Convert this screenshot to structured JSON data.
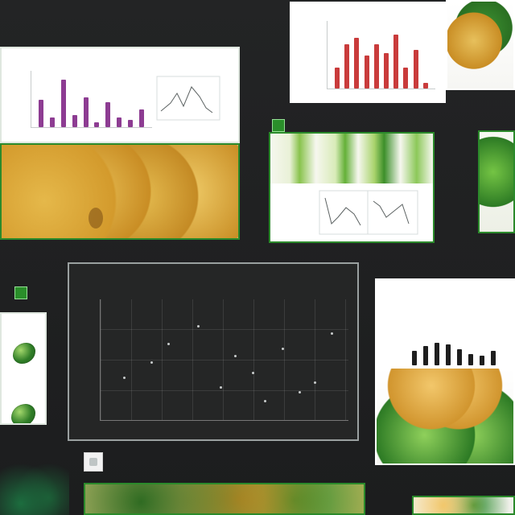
{
  "texts": {
    "top_left": "",
    "left_mid": "",
    "left_low": "",
    "mid_caption": "",
    "mid_caption2": "",
    "right_top_caption": "",
    "right_mid_caption": "",
    "bottom_left": "",
    "bottom_mid": ""
  },
  "charts": {
    "top_left_chart": {
      "type": "bar",
      "title": "",
      "values": [
        0.55,
        0.2,
        0.95,
        0.25,
        0.6,
        0.1,
        0.5,
        0.2,
        0.15,
        0.35
      ],
      "color": "#8d3c92"
    },
    "top_right_chart": {
      "type": "bar",
      "title": "",
      "values": [
        0.35,
        0.75,
        0.85,
        0.55,
        0.75,
        0.6,
        0.9,
        0.35,
        0.65,
        0.1
      ],
      "color": "#c93b3b"
    },
    "middle_scatter": {
      "type": "scatter",
      "title": "",
      "subtitle": "",
      "points": [
        {
          "x": 0.09,
          "y": 0.36
        },
        {
          "x": 0.27,
          "y": 0.64
        },
        {
          "x": 0.39,
          "y": 0.79
        },
        {
          "x": 0.54,
          "y": 0.54
        },
        {
          "x": 0.61,
          "y": 0.4
        },
        {
          "x": 0.73,
          "y": 0.6
        },
        {
          "x": 0.86,
          "y": 0.32
        },
        {
          "x": 0.93,
          "y": 0.73
        },
        {
          "x": 0.2,
          "y": 0.49
        },
        {
          "x": 0.48,
          "y": 0.28
        },
        {
          "x": 0.66,
          "y": 0.17
        },
        {
          "x": 0.8,
          "y": 0.24
        }
      ]
    }
  },
  "colors": {
    "background": "#1f2021",
    "panel_border": "#e9efe8",
    "accent_green": "#2a8e2a",
    "accent_red": "#c93b3b",
    "accent_purple": "#8d3c92"
  }
}
